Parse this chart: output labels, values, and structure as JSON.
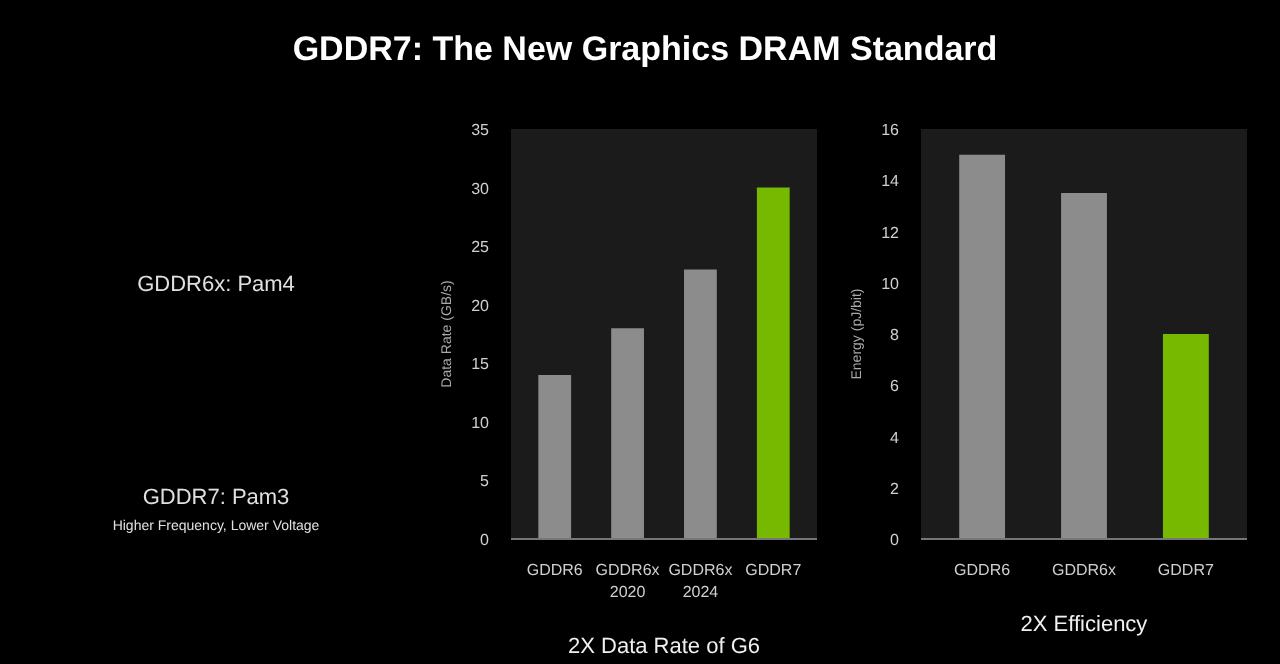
{
  "chart_data": [
    {
      "type": "other",
      "title": "GDDR7: The New Graphics DRAM Standard",
      "annotations": [
        "GDDR6x: Pam4",
        "GDDR7: Pam3",
        "Higher Frequency, Lower Voltage"
      ]
    },
    {
      "type": "bar",
      "categories": [
        "GDDR6",
        "GDDR6x\n2020",
        "GDDR6x\n2024",
        "GDDR7"
      ],
      "values": [
        14,
        18,
        23,
        30
      ],
      "colors": [
        "#8c8c8c",
        "#8c8c8c",
        "#8c8c8c",
        "#76b900"
      ],
      "ylabel": "Data Rate (GB/s)",
      "xlabel": "2X Data Rate of G6",
      "ylim": [
        0,
        35
      ],
      "yticks": [
        0,
        5,
        10,
        15,
        20,
        25,
        30,
        35
      ],
      "grid": false
    },
    {
      "type": "bar",
      "categories": [
        "GDDR6",
        "GDDR6x",
        "GDDR7"
      ],
      "values": [
        15,
        13.5,
        8
      ],
      "colors": [
        "#8c8c8c",
        "#8c8c8c",
        "#76b900"
      ],
      "ylabel": "Energy (pJ/bit)",
      "xlabel": "2X Efficiency",
      "ylim": [
        0,
        16
      ],
      "yticks": [
        0,
        2,
        4,
        6,
        8,
        10,
        12,
        14,
        16
      ],
      "grid": false
    }
  ]
}
